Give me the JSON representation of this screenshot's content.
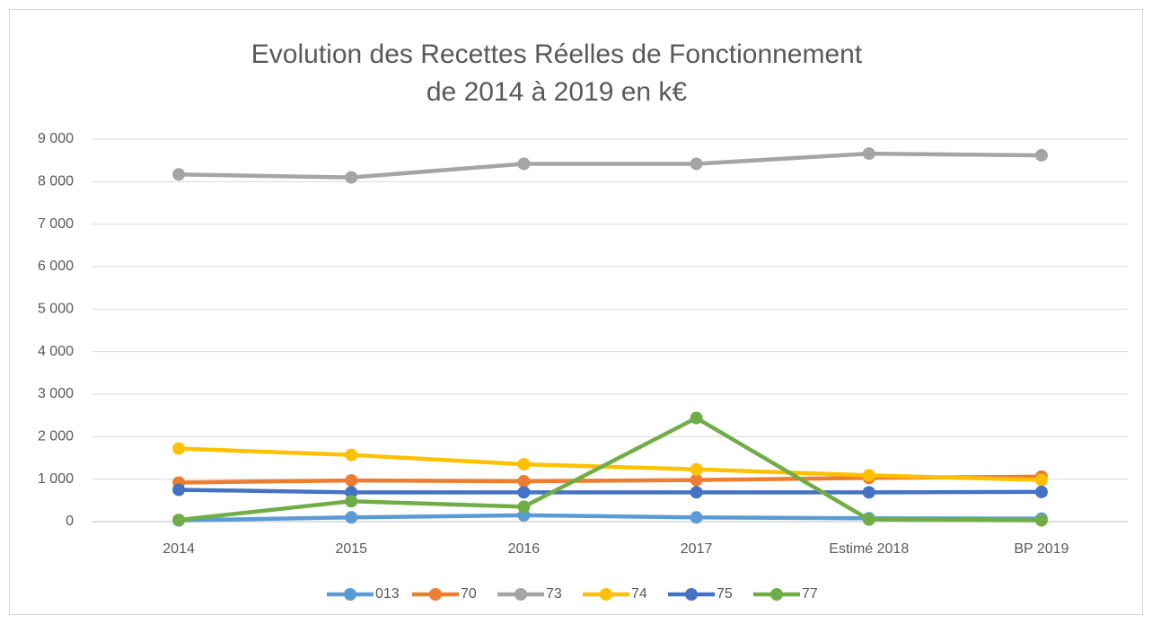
{
  "chart_data": {
    "type": "line",
    "title": [
      "Evolution des Recettes Réelles de Fonctionnement",
      "de 2014 à 2019 en k€"
    ],
    "categories": [
      "2014",
      "2015",
      "2016",
      "2017",
      "Estimé 2018",
      "BP 2019"
    ],
    "series": [
      {
        "name": "013",
        "color": "#5b9bd5",
        "values": [
          30,
          100,
          150,
          100,
          80,
          70
        ]
      },
      {
        "name": "70",
        "color": "#ed7d31",
        "values": [
          920,
          970,
          950,
          980,
          1030,
          1060
        ]
      },
      {
        "name": "73",
        "color": "#a5a5a5",
        "values": [
          8170,
          8100,
          8420,
          8420,
          8660,
          8620
        ]
      },
      {
        "name": "74",
        "color": "#ffc000",
        "values": [
          1720,
          1570,
          1350,
          1230,
          1090,
          980
        ]
      },
      {
        "name": "75",
        "color": "#4472c4",
        "values": [
          750,
          690,
          690,
          690,
          690,
          700
        ]
      },
      {
        "name": "77",
        "color": "#70ad47",
        "values": [
          40,
          480,
          350,
          2440,
          50,
          30
        ]
      }
    ],
    "ylim": [
      0,
      9000
    ],
    "yticks": [
      0,
      {
        "value": 1000,
        "label": "1 000"
      },
      {
        "value": 2000,
        "label": "2 000"
      },
      {
        "value": 3000,
        "label": "3 000"
      },
      {
        "value": 4000,
        "label": "4 000"
      },
      {
        "value": 5000,
        "label": "5 000"
      },
      {
        "value": 6000,
        "label": "6 000"
      },
      {
        "value": 7000,
        "label": "7 000"
      },
      {
        "value": 8000,
        "label": "8 000"
      },
      {
        "value": 9000,
        "label": "9 000"
      }
    ],
    "grid": true,
    "legend": "bottom"
  }
}
